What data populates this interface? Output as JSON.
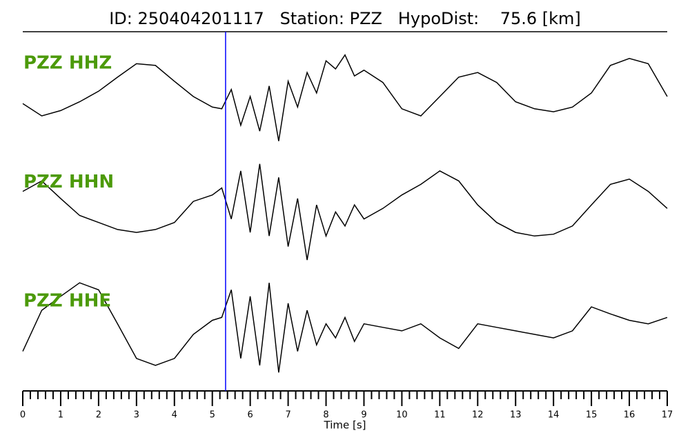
{
  "chart_data": {
    "type": "line",
    "title": "ID: 250404201117   Station: PZZ   HypoDist:    75.6 [km]",
    "xlabel": "Time [s]",
    "x": [
      0,
      0.5,
      1,
      1.5,
      2,
      2.5,
      3,
      3.5,
      4,
      4.5,
      5,
      5.25,
      5.5,
      5.75,
      6,
      6.25,
      6.5,
      6.75,
      7,
      7.25,
      7.5,
      7.75,
      8,
      8.25,
      8.5,
      8.75,
      9,
      9.5,
      10,
      10.5,
      11,
      11.5,
      12,
      12.5,
      13,
      13.5,
      14,
      14.5,
      15,
      15.5,
      16,
      16.5,
      17
    ],
    "series": [
      {
        "name": "PZZ HHZ",
        "color": "#000000",
        "values": [
          -0.12,
          -0.33,
          -0.24,
          -0.09,
          0.09,
          0.33,
          0.56,
          0.53,
          0.26,
          0,
          -0.18,
          -0.21,
          0.12,
          -0.49,
          0,
          -0.59,
          0.18,
          -0.76,
          0.26,
          -0.18,
          0.41,
          0.06,
          0.61,
          0.47,
          0.71,
          0.35,
          0.45,
          0.24,
          -0.21,
          -0.33,
          0,
          0.33,
          0.41,
          0.24,
          -0.09,
          -0.21,
          -0.26,
          -0.18,
          0.06,
          0.53,
          0.65,
          0.56,
          0
        ]
      },
      {
        "name": "PZZ HHN",
        "color": "#000000",
        "values": [
          0.41,
          0.59,
          0.29,
          0,
          -0.12,
          -0.24,
          -0.29,
          -0.24,
          -0.12,
          0.24,
          0.35,
          0.47,
          -0.06,
          0.76,
          -0.29,
          0.88,
          -0.35,
          0.65,
          -0.53,
          0.29,
          -0.76,
          0.18,
          -0.35,
          0.06,
          -0.18,
          0.18,
          -0.06,
          0.12,
          0.35,
          0.53,
          0.76,
          0.59,
          0.18,
          -0.12,
          -0.29,
          -0.35,
          -0.32,
          -0.18,
          0.18,
          0.53,
          0.62,
          0.41,
          0.12
        ]
      },
      {
        "name": "PZZ HHE",
        "color": "#000000",
        "values": [
          -0.29,
          0.41,
          0.65,
          0.88,
          0.76,
          0.18,
          -0.41,
          -0.53,
          -0.41,
          0,
          0.24,
          0.29,
          0.76,
          -0.41,
          0.65,
          -0.53,
          0.88,
          -0.65,
          0.53,
          -0.29,
          0.41,
          -0.18,
          0.18,
          -0.06,
          0.29,
          -0.12,
          0.18,
          0.12,
          0.06,
          0.18,
          -0.06,
          -0.24,
          0.18,
          0.12,
          0.06,
          0,
          -0.06,
          0.06,
          0.47,
          0.35,
          0.24,
          0.18,
          0.29
        ]
      }
    ],
    "label_color": "#4c9a0a",
    "ylim": [
      -1,
      1
    ],
    "xlim": [
      0,
      17
    ],
    "xticks": [
      0,
      1,
      2,
      3,
      4,
      5,
      6,
      7,
      8,
      9,
      10,
      11,
      12,
      13,
      14,
      15,
      16,
      17
    ],
    "xminorticks": [
      0.2,
      0.4,
      0.6,
      0.8,
      1.2,
      1.4,
      1.6,
      1.8,
      2.2,
      2.4,
      2.6,
      2.8,
      3.2,
      3.4,
      3.6,
      3.8,
      4.2,
      4.4,
      4.6,
      4.8,
      5.2,
      5.4,
      5.6,
      5.8,
      6.2,
      6.4,
      6.6,
      6.8,
      7.2,
      7.4,
      7.6,
      7.8,
      8.2,
      8.4,
      8.6,
      8.8,
      9.2,
      9.4,
      9.6,
      9.8,
      10.2,
      10.4,
      10.6,
      10.8,
      11.2,
      11.4,
      11.6,
      11.8,
      12.2,
      12.4,
      12.6,
      12.8,
      13.2,
      13.4,
      13.6,
      13.8,
      14.2,
      14.4,
      14.6,
      14.8,
      15.2,
      15.4,
      15.6,
      15.8,
      16.2,
      16.4,
      16.6,
      16.8
    ],
    "vline": {
      "x": 5.35,
      "color": "#0000ff"
    }
  }
}
